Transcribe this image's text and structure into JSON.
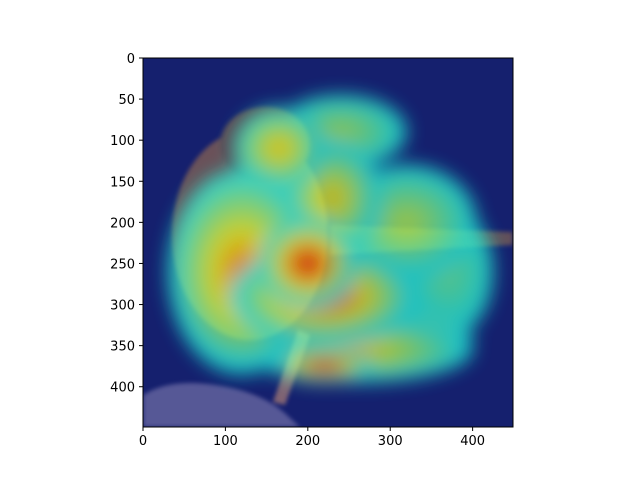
{
  "chart_data": {
    "type": "heatmap",
    "title": "",
    "xlabel": "",
    "ylabel": "",
    "xlim": [
      0,
      449
    ],
    "ylim": [
      449,
      0
    ],
    "xticks": [
      0,
      100,
      200,
      300,
      400
    ],
    "yticks": [
      0,
      50,
      100,
      150,
      200,
      250,
      300,
      350,
      400
    ],
    "colormap": "jet",
    "background_image": "bird-photo",
    "grid": false,
    "hotspots": [
      {
        "x": 120,
        "y": 260,
        "rx": 90,
        "ry": 125,
        "intensity": 0.72
      },
      {
        "x": 230,
        "y": 170,
        "rx": 60,
        "ry": 70,
        "intensity": 0.62
      },
      {
        "x": 320,
        "y": 200,
        "rx": 85,
        "ry": 70,
        "intensity": 0.52
      },
      {
        "x": 165,
        "y": 110,
        "rx": 55,
        "ry": 50,
        "intensity": 0.62
      },
      {
        "x": 240,
        "y": 90,
        "rx": 80,
        "ry": 45,
        "intensity": 0.5
      },
      {
        "x": 370,
        "y": 260,
        "rx": 55,
        "ry": 80,
        "intensity": 0.42
      },
      {
        "x": 220,
        "y": 290,
        "rx": 115,
        "ry": 60,
        "intensity": 0.8
      },
      {
        "x": 200,
        "y": 250,
        "rx": 60,
        "ry": 55,
        "intensity": 0.9
      },
      {
        "x": 260,
        "y": 355,
        "rx": 140,
        "ry": 40,
        "intensity": 0.62
      },
      {
        "x": 220,
        "y": 375,
        "rx": 60,
        "ry": 20,
        "intensity": 0.9
      },
      {
        "x": 340,
        "y": 345,
        "rx": 60,
        "ry": 40,
        "intensity": 0.55
      }
    ]
  }
}
